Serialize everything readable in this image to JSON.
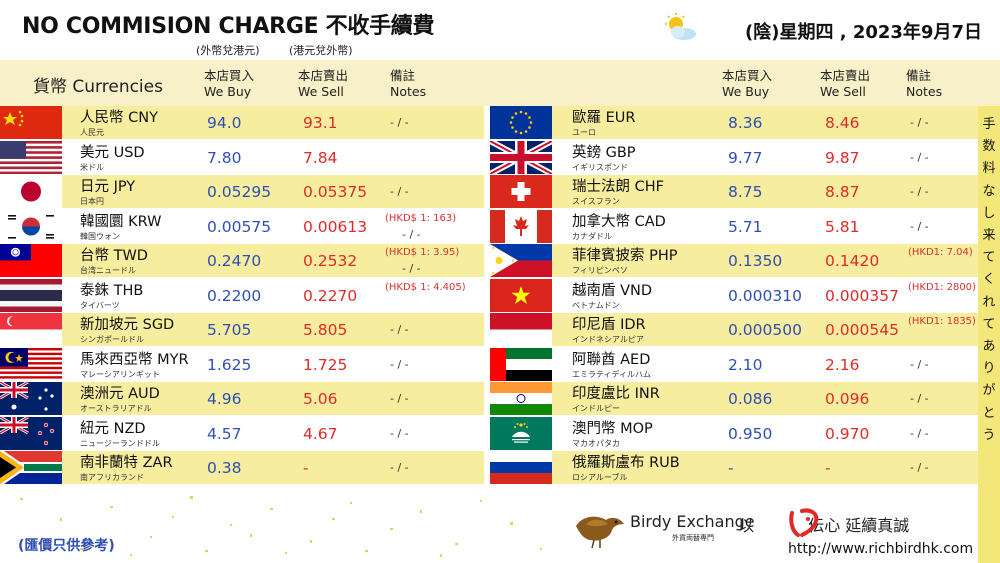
{
  "header": {
    "title": "NO COMMISION CHARGE 不收手續費",
    "note_foreign_to_hkd": "(外幣兌港元)",
    "note_hkd_to_foreign": "(港元兌外幣)",
    "date": "(陰)星期四 , 2023年9月7日",
    "weather_icon": "partly-cloudy-icon"
  },
  "columns": {
    "currencies": "貨幣 Currencies",
    "buy_zh": "本店買入",
    "buy_en": "We Buy",
    "sell_zh": "本店賣出",
    "sell_en": "We Sell",
    "notes_zh": "備註",
    "notes_en": "Notes"
  },
  "left_rows": [
    {
      "flag": "cn",
      "name": "人民幣 CNY",
      "jp": "人民元",
      "buy": "94.0",
      "sell": "93.1",
      "note": "- / -",
      "note_red": ""
    },
    {
      "flag": "us",
      "name": "美元 USD",
      "jp": "米ドル",
      "buy": "7.80",
      "sell": "7.84",
      "note": "",
      "note_red": ""
    },
    {
      "flag": "jp",
      "name": "日元 JPY",
      "jp": "日本円",
      "buy": "0.05295",
      "sell": "0.05375",
      "note": "- / -",
      "note_red": ""
    },
    {
      "flag": "kr",
      "name": "韓國圜 KRW",
      "jp": "韓国ウォン",
      "buy": "0.00575",
      "sell": "0.00613",
      "note": "- / -",
      "note_red": "(HKD$ 1: 163)"
    },
    {
      "flag": "tw",
      "name": "台幣 TWD",
      "jp": "台湾ニュードル",
      "buy": "0.2470",
      "sell": "0.2532",
      "note": "- / -",
      "note_red": "(HKD$ 1: 3.95)"
    },
    {
      "flag": "th",
      "name": "泰銖 THB",
      "jp": "タイバーツ",
      "buy": "0.2200",
      "sell": "0.2270",
      "note": "",
      "note_red": "(HKD$ 1: 4.405)"
    },
    {
      "flag": "sg",
      "name": "新加坡元 SGD",
      "jp": "シンガポールドル",
      "buy": "5.705",
      "sell": "5.805",
      "note": "- / -",
      "note_red": ""
    },
    {
      "flag": "my",
      "name": "馬來西亞幣 MYR",
      "jp": "マレーシアリンギット",
      "buy": "1.625",
      "sell": "1.725",
      "note": "- / -",
      "note_red": ""
    },
    {
      "flag": "au",
      "name": "澳洲元 AUD",
      "jp": "オーストラリアドル",
      "buy": "4.96",
      "sell": "5.06",
      "note": "- / -",
      "note_red": ""
    },
    {
      "flag": "nz",
      "name": "紐元 NZD",
      "jp": "ニュージーランドドル",
      "buy": "4.57",
      "sell": "4.67",
      "note": "- / -",
      "note_red": ""
    },
    {
      "flag": "za",
      "name": "南非蘭特 ZAR",
      "jp": "南アフリカランド",
      "buy": "0.38",
      "sell": "-",
      "note": "- / -",
      "note_red": ""
    }
  ],
  "right_rows": [
    {
      "flag": "eu",
      "name": "歐羅 EUR",
      "jp": "ユーロ",
      "buy": "8.36",
      "sell": "8.46",
      "note": "- / -",
      "note_red": ""
    },
    {
      "flag": "gb",
      "name": "英鎊 GBP",
      "jp": "イギリスポンド",
      "buy": "9.77",
      "sell": "9.87",
      "note": "- / -",
      "note_red": ""
    },
    {
      "flag": "ch",
      "name": "瑞士法朗 CHF",
      "jp": "スイスフラン",
      "buy": "8.75",
      "sell": "8.87",
      "note": "- / -",
      "note_red": ""
    },
    {
      "flag": "ca",
      "name": "加拿大幣 CAD",
      "jp": "カナダドル",
      "buy": "5.71",
      "sell": "5.81",
      "note": "- / -",
      "note_red": ""
    },
    {
      "flag": "ph",
      "name": "菲律賓披索 PHP",
      "jp": "フィリピンペソ",
      "buy": "0.1350",
      "sell": "0.1420",
      "note": "",
      "note_red": "(HKD1: 7.04)"
    },
    {
      "flag": "vn",
      "name": "越南盾 VND",
      "jp": "ベトナムドン",
      "buy": "0.000310",
      "sell": "0.000357",
      "note": "",
      "note_red": "(HKD1: 2800)"
    },
    {
      "flag": "id",
      "name": "印尼盾 IDR",
      "jp": "インドネシアルピア",
      "buy": "0.000500",
      "sell": "0.000545",
      "note": "",
      "note_red": "(HKD1: 1835)"
    },
    {
      "flag": "ae",
      "name": "阿聯酋 AED",
      "jp": "エミラティディルハム",
      "buy": "2.10",
      "sell": "2.16",
      "note": "- / -",
      "note_red": ""
    },
    {
      "flag": "in",
      "name": "印度盧比 INR",
      "jp": "インドルピー",
      "buy": "0.086",
      "sell": "0.096",
      "note": "- / -",
      "note_red": ""
    },
    {
      "flag": "mo",
      "name": "澳門幣 MOP",
      "jp": "マカオパタカ",
      "buy": "0.950",
      "sell": "0.970",
      "note": "- / -",
      "note_red": ""
    },
    {
      "flag": "ru",
      "name": "俄羅斯盧布 RUB",
      "jp": "ロシアルーブル",
      "buy": "-",
      "sell": "-",
      "note": "- / -",
      "note_red": ""
    }
  ],
  "side_banner": "手数料なし来てくれてありがとう",
  "footer": {
    "reference": "(匯價只供參考)",
    "brand": "Birdy Exchange",
    "brand_sub": "外貨両替専門",
    "slogan_prefix": "以",
    "slogan_suffix": "伝心 延續真誠",
    "url": "http://www.richbirdhk.com"
  },
  "colors": {
    "band_yellow": "#f6ed9e",
    "buy_blue": "#2f4fb5",
    "sell_red": "#e02a2a"
  }
}
